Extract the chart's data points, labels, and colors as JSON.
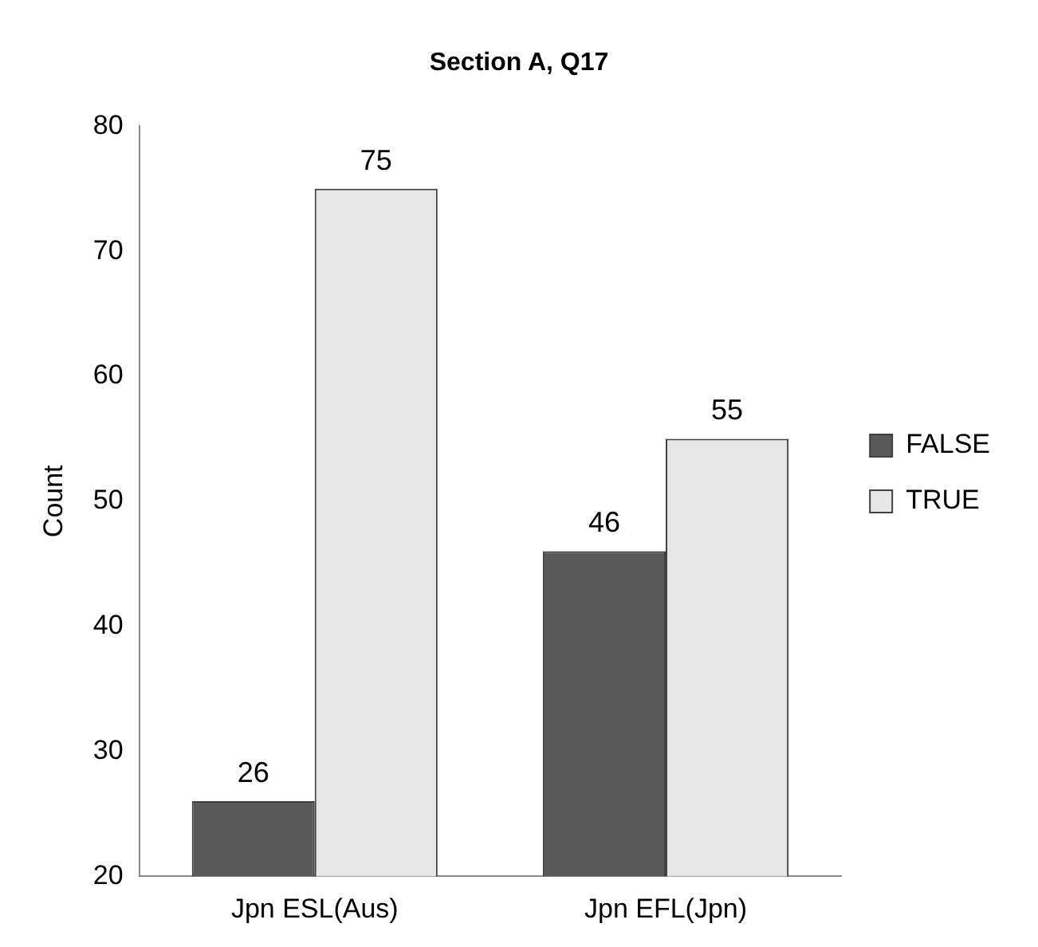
{
  "chart_data": {
    "type": "bar",
    "title": "Section A, Q17",
    "ylabel": "Count",
    "categories": [
      "Jpn ESL(Aus)",
      "Jpn EFL(Jpn)"
    ],
    "series": [
      {
        "name": "FALSE",
        "color": "#595959",
        "values": [
          26,
          46
        ]
      },
      {
        "name": "TRUE",
        "color": "#e6e6e6",
        "values": [
          75,
          55
        ]
      }
    ],
    "ylim": [
      20,
      80
    ],
    "yticks": [
      20,
      30,
      40,
      50,
      60,
      70,
      80
    ],
    "grid": false,
    "legend": "right",
    "data_labels": true
  }
}
